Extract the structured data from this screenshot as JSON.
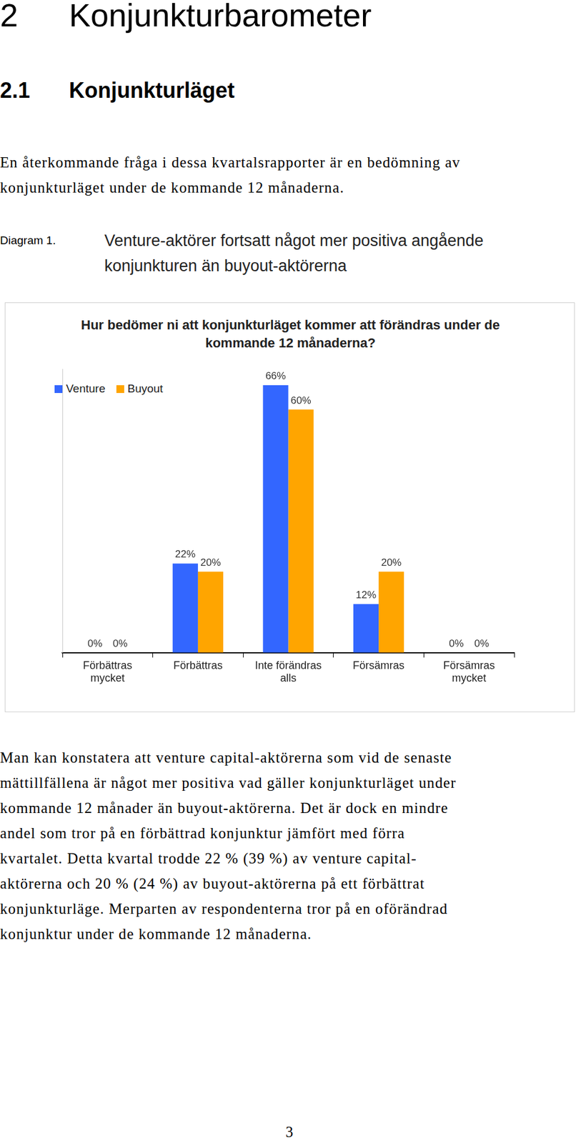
{
  "heading": {
    "number": "2",
    "title": "Konjunkturbarometer"
  },
  "subheading": {
    "number": "2.1",
    "title": "Konjunkturläget"
  },
  "intro": [
    "En återkommande fråga i dessa kvartalsrapporter är en bedömning av",
    "konjunkturläget under de kommande 12 månaderna."
  ],
  "diagram": {
    "label": "Diagram 1.",
    "caption": [
      "Venture-aktörer fortsatt något mer positiva angående",
      "konjunkturen än buyout-aktörerna"
    ]
  },
  "chart_data": {
    "type": "bar",
    "title": "Hur bedömer ni att konjunkturläget kommer att förändras under de kommande 12 månaderna?",
    "categories": [
      [
        "Förbättras",
        "mycket"
      ],
      [
        "Förbättras"
      ],
      [
        "Inte förändras",
        "alls"
      ],
      [
        "Försämras"
      ],
      [
        "Försämras",
        "mycket"
      ]
    ],
    "series": [
      {
        "name": "Venture",
        "color": "#3366ff",
        "values": [
          0,
          22,
          66,
          12,
          0
        ],
        "value_labels": [
          "0%",
          "22%",
          "66%",
          "12%",
          "0%"
        ]
      },
      {
        "name": "Buyout",
        "color": "#ffa500",
        "values": [
          0,
          20,
          60,
          20,
          0
        ],
        "value_labels": [
          "0%",
          "20%",
          "60%",
          "20%",
          "0%"
        ]
      }
    ],
    "ylim": [
      0,
      70
    ],
    "grid": false,
    "legend": "top-left",
    "data_labels": true,
    "tick_labels": "x"
  },
  "body": [
    "Man kan konstatera att venture capital-aktörerna som vid de senaste",
    "mättillfällena är något mer positiva vad gäller konjunkturläget under",
    "kommande 12 månader än buyout-aktörerna. Det är dock en mindre",
    "andel som tror på en förbättrad konjunktur jämfört med förra",
    "kvartalet. Detta kvartal trodde 22 % (39 %) av venture capital-",
    "aktörerna och 20 % (24 %) av buyout-aktörerna på ett förbättrat",
    "konjunkturläge. Merparten av respondenterna tror på en oförändrad",
    "konjunktur under de kommande 12 månaderna."
  ],
  "page_number": "3"
}
